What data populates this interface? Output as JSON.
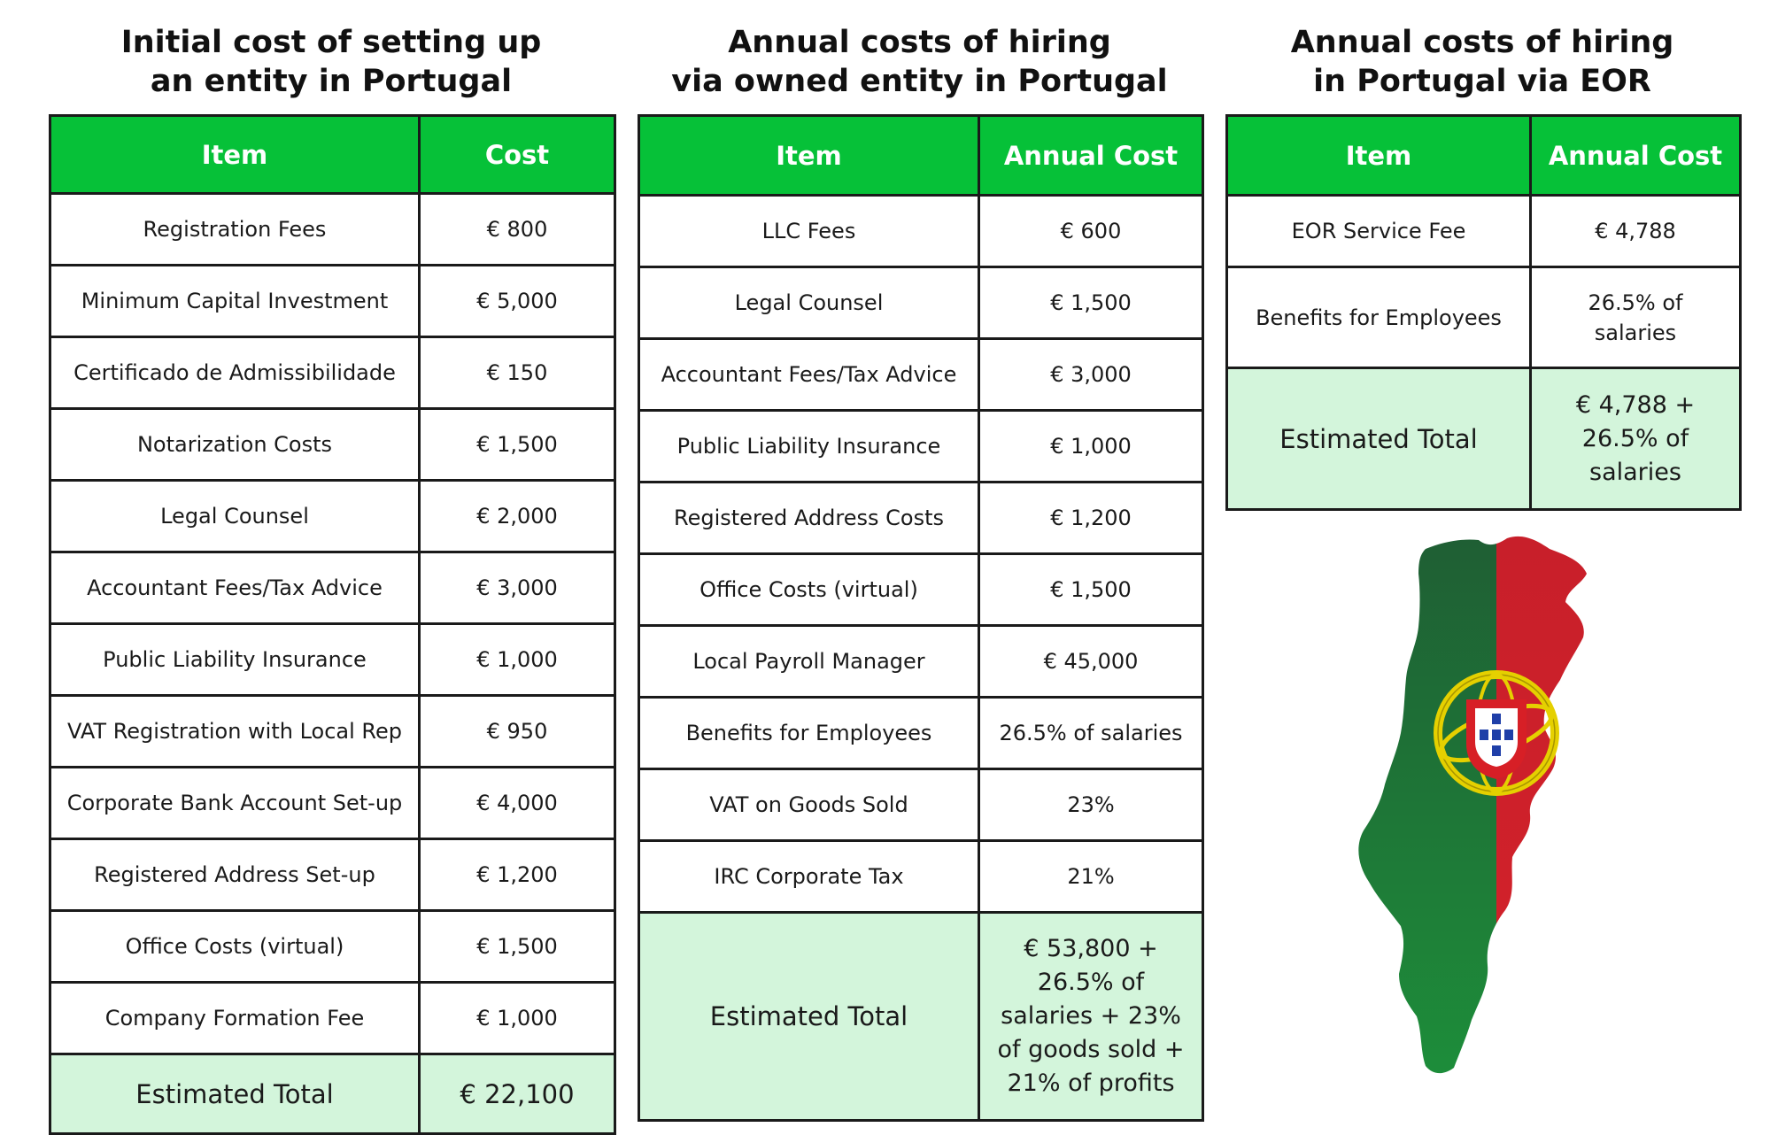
{
  "tables": [
    {
      "title_line1": "Initial cost of setting up",
      "title_line2": "an entity in Portugal",
      "header_item": "Item",
      "header_cost": "Cost",
      "rows": [
        {
          "item": "Registration Fees",
          "cost": "€ 800"
        },
        {
          "item": "Minimum Capital Investment",
          "cost": "€ 5,000"
        },
        {
          "item": "Certificado de Admissibilidade",
          "cost": "€ 150"
        },
        {
          "item": "Notarization Costs",
          "cost": "€ 1,500"
        },
        {
          "item": "Legal Counsel",
          "cost": "€ 2,000"
        },
        {
          "item": "Accountant Fees/Tax Advice",
          "cost": "€ 3,000"
        },
        {
          "item": "Public Liability Insurance",
          "cost": "€ 1,000"
        },
        {
          "item": "VAT Registration with Local Rep",
          "cost": "€ 950"
        },
        {
          "item": "Corporate Bank Account Set-up",
          "cost": "€ 4,000"
        },
        {
          "item": "Registered Address Set-up",
          "cost": "€ 1,200"
        },
        {
          "item": "Office Costs (virtual)",
          "cost": "€ 1,500"
        },
        {
          "item": "Company Formation Fee",
          "cost": "€ 1,000"
        }
      ],
      "total_label": "Estimated Total",
      "total_value": "€ 22,100"
    },
    {
      "title_line1": "Annual costs of hiring",
      "title_line2": "via owned entity in Portugal",
      "header_item": "Item",
      "header_cost": "Annual Cost",
      "rows": [
        {
          "item": "LLC Fees",
          "cost": "€ 600"
        },
        {
          "item": "Legal Counsel",
          "cost": "€ 1,500"
        },
        {
          "item": "Accountant Fees/Tax Advice",
          "cost": "€ 3,000"
        },
        {
          "item": "Public Liability Insurance",
          "cost": "€ 1,000"
        },
        {
          "item": "Registered Address Costs",
          "cost": "€ 1,200"
        },
        {
          "item": "Office Costs (virtual)",
          "cost": "€ 1,500"
        },
        {
          "item": "Local Payroll Manager",
          "cost": "€ 45,000"
        },
        {
          "item": "Benefits for Employees",
          "cost": "26.5% of salaries"
        },
        {
          "item": "VAT on Goods Sold",
          "cost": "23%"
        },
        {
          "item": "IRC Corporate Tax",
          "cost": "21%"
        }
      ],
      "total_label": "Estimated Total",
      "total_value_lines": [
        "€ 53,800 +",
        "26.5% of",
        "salaries + 23%",
        "of goods sold +",
        "21% of profits"
      ]
    },
    {
      "title_line1": "Annual costs of hiring",
      "title_line2": "in Portugal via EOR",
      "header_item": "Item",
      "header_cost": "Annual Cost",
      "rows": [
        {
          "item": "EOR Service Fee",
          "cost": "€ 4,788"
        },
        {
          "item": "Benefits for Employees",
          "cost_lines": [
            "26.5% of",
            "salaries"
          ]
        }
      ],
      "total_label": "Estimated Total",
      "total_value_lines": [
        "€ 4,788 +",
        "26.5% of",
        "salaries"
      ]
    }
  ],
  "map": {
    "icon": "portugal-flag-map-icon",
    "colors": {
      "green": "#1e7a35",
      "red": "#d91f26",
      "gold": "#e8d200"
    }
  }
}
